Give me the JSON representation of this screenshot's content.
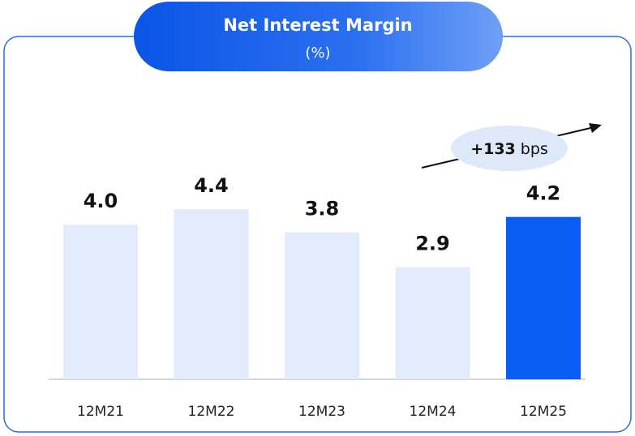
{
  "chart_data": {
    "type": "bar",
    "title": "Net Interest Margin",
    "subtitle": "(%)",
    "categories": [
      "12M21",
      "12M22",
      "12M23",
      "12M24",
      "12M25"
    ],
    "values": [
      4.0,
      4.4,
      3.8,
      2.9,
      4.2
    ],
    "value_labels": [
      "4.0",
      "4.4",
      "3.8",
      "2.9",
      "4.2"
    ],
    "colors": [
      "#e2ebfb",
      "#e2ebfb",
      "#e2ebfb",
      "#e2ebfb",
      "#0a5cf5"
    ],
    "annotation": [
      "+133",
      "bps"
    ]
  }
}
